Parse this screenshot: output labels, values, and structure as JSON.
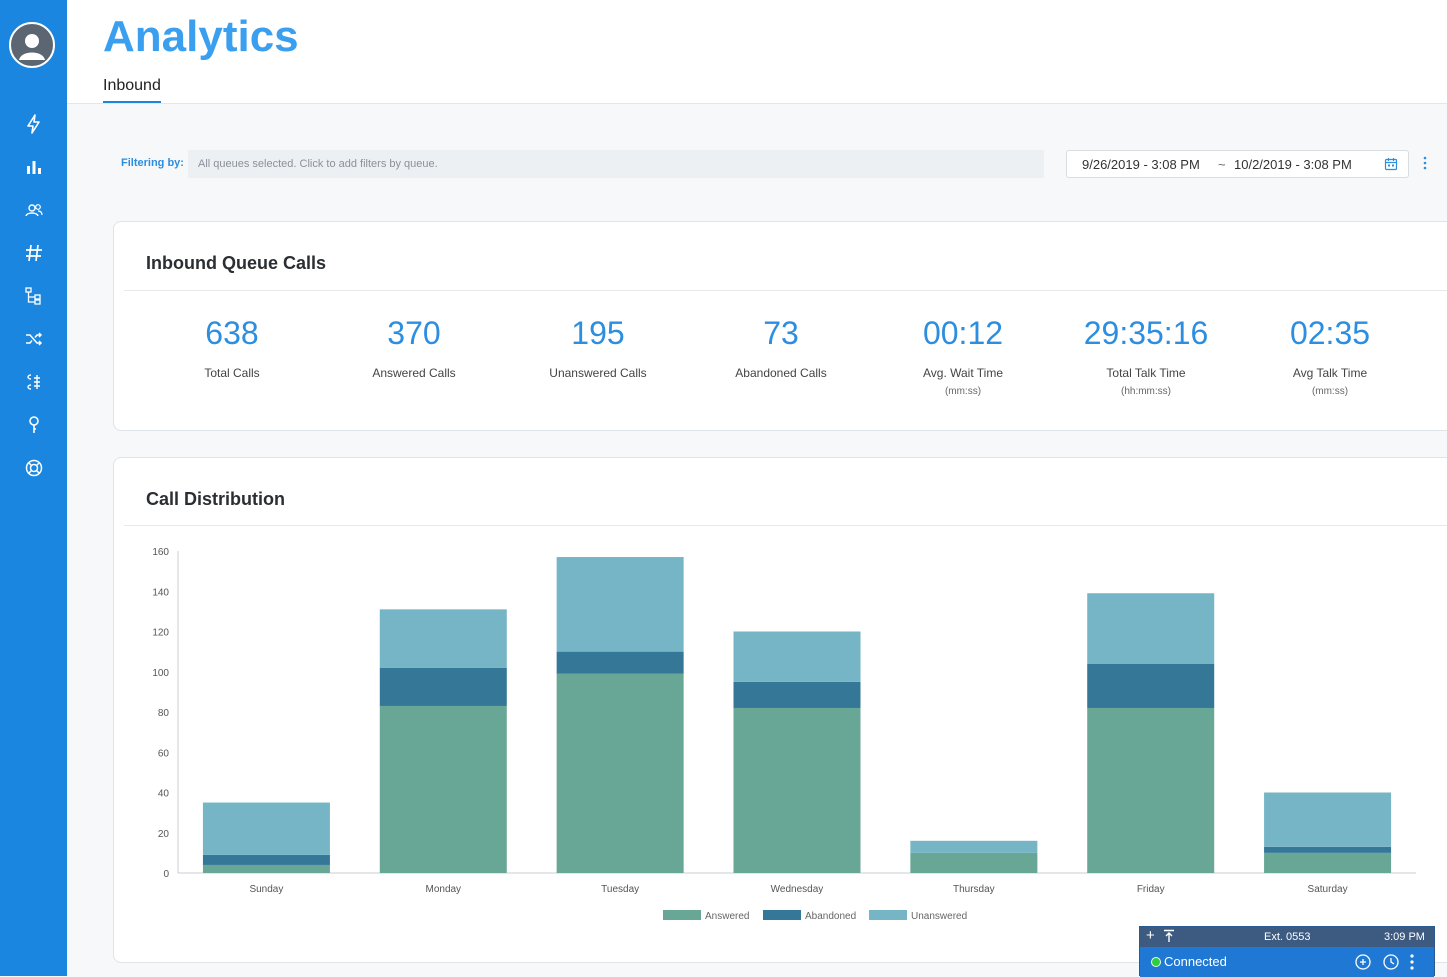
{
  "page": {
    "title": "Analytics",
    "tab": "Inbound"
  },
  "sidebar": {
    "icons": [
      "lightning-icon",
      "bar-chart-icon",
      "users-icon",
      "hash-icon",
      "tree-icon",
      "shuffle-icon",
      "routing-icon",
      "key-icon",
      "lifebuoy-icon"
    ]
  },
  "filter": {
    "label": "Filtering by:",
    "placeholder": "All queues selected. Click to add filters by queue.",
    "date_from": "9/26/2019 - 3:08 PM",
    "date_separator": "~",
    "date_to": "10/2/2019 - 3:08 PM"
  },
  "queue_calls": {
    "title": "Inbound Queue Calls",
    "stats": [
      {
        "value": "638",
        "label": "Total Calls",
        "sub": ""
      },
      {
        "value": "370",
        "label": "Answered Calls",
        "sub": ""
      },
      {
        "value": "195",
        "label": "Unanswered Calls",
        "sub": ""
      },
      {
        "value": "73",
        "label": "Abandoned Calls",
        "sub": ""
      },
      {
        "value": "00:12",
        "label": "Avg. Wait Time",
        "sub": "(mm:ss)"
      },
      {
        "value": "29:35:16",
        "label": "Total Talk Time",
        "sub": "(hh:mm:ss)"
      },
      {
        "value": "02:35",
        "label": "Avg Talk Time",
        "sub": "(mm:ss)"
      }
    ]
  },
  "distribution": {
    "title": "Call Distribution"
  },
  "chart_data": {
    "type": "bar",
    "stacked": true,
    "categories": [
      "Sunday",
      "Monday",
      "Tuesday",
      "Wednesday",
      "Thursday",
      "Friday",
      "Saturday"
    ],
    "series": [
      {
        "name": "Answered",
        "color": "#68a695",
        "values": [
          4,
          83,
          99,
          82,
          10,
          82,
          10
        ]
      },
      {
        "name": "Abandoned",
        "color": "#347796",
        "values": [
          5,
          19,
          11,
          13,
          0,
          22,
          3
        ]
      },
      {
        "name": "Unanswered",
        "color": "#75b5c6",
        "values": [
          26,
          29,
          47,
          25,
          6,
          35,
          27
        ]
      }
    ],
    "ylim": [
      0,
      160
    ],
    "yticks": [
      0,
      20,
      40,
      60,
      80,
      100,
      120,
      140,
      160
    ],
    "legend": "bottom",
    "grid": false
  },
  "softphone": {
    "extension": "Ext. 0553",
    "time": "3:09 PM",
    "status": "Connected"
  }
}
